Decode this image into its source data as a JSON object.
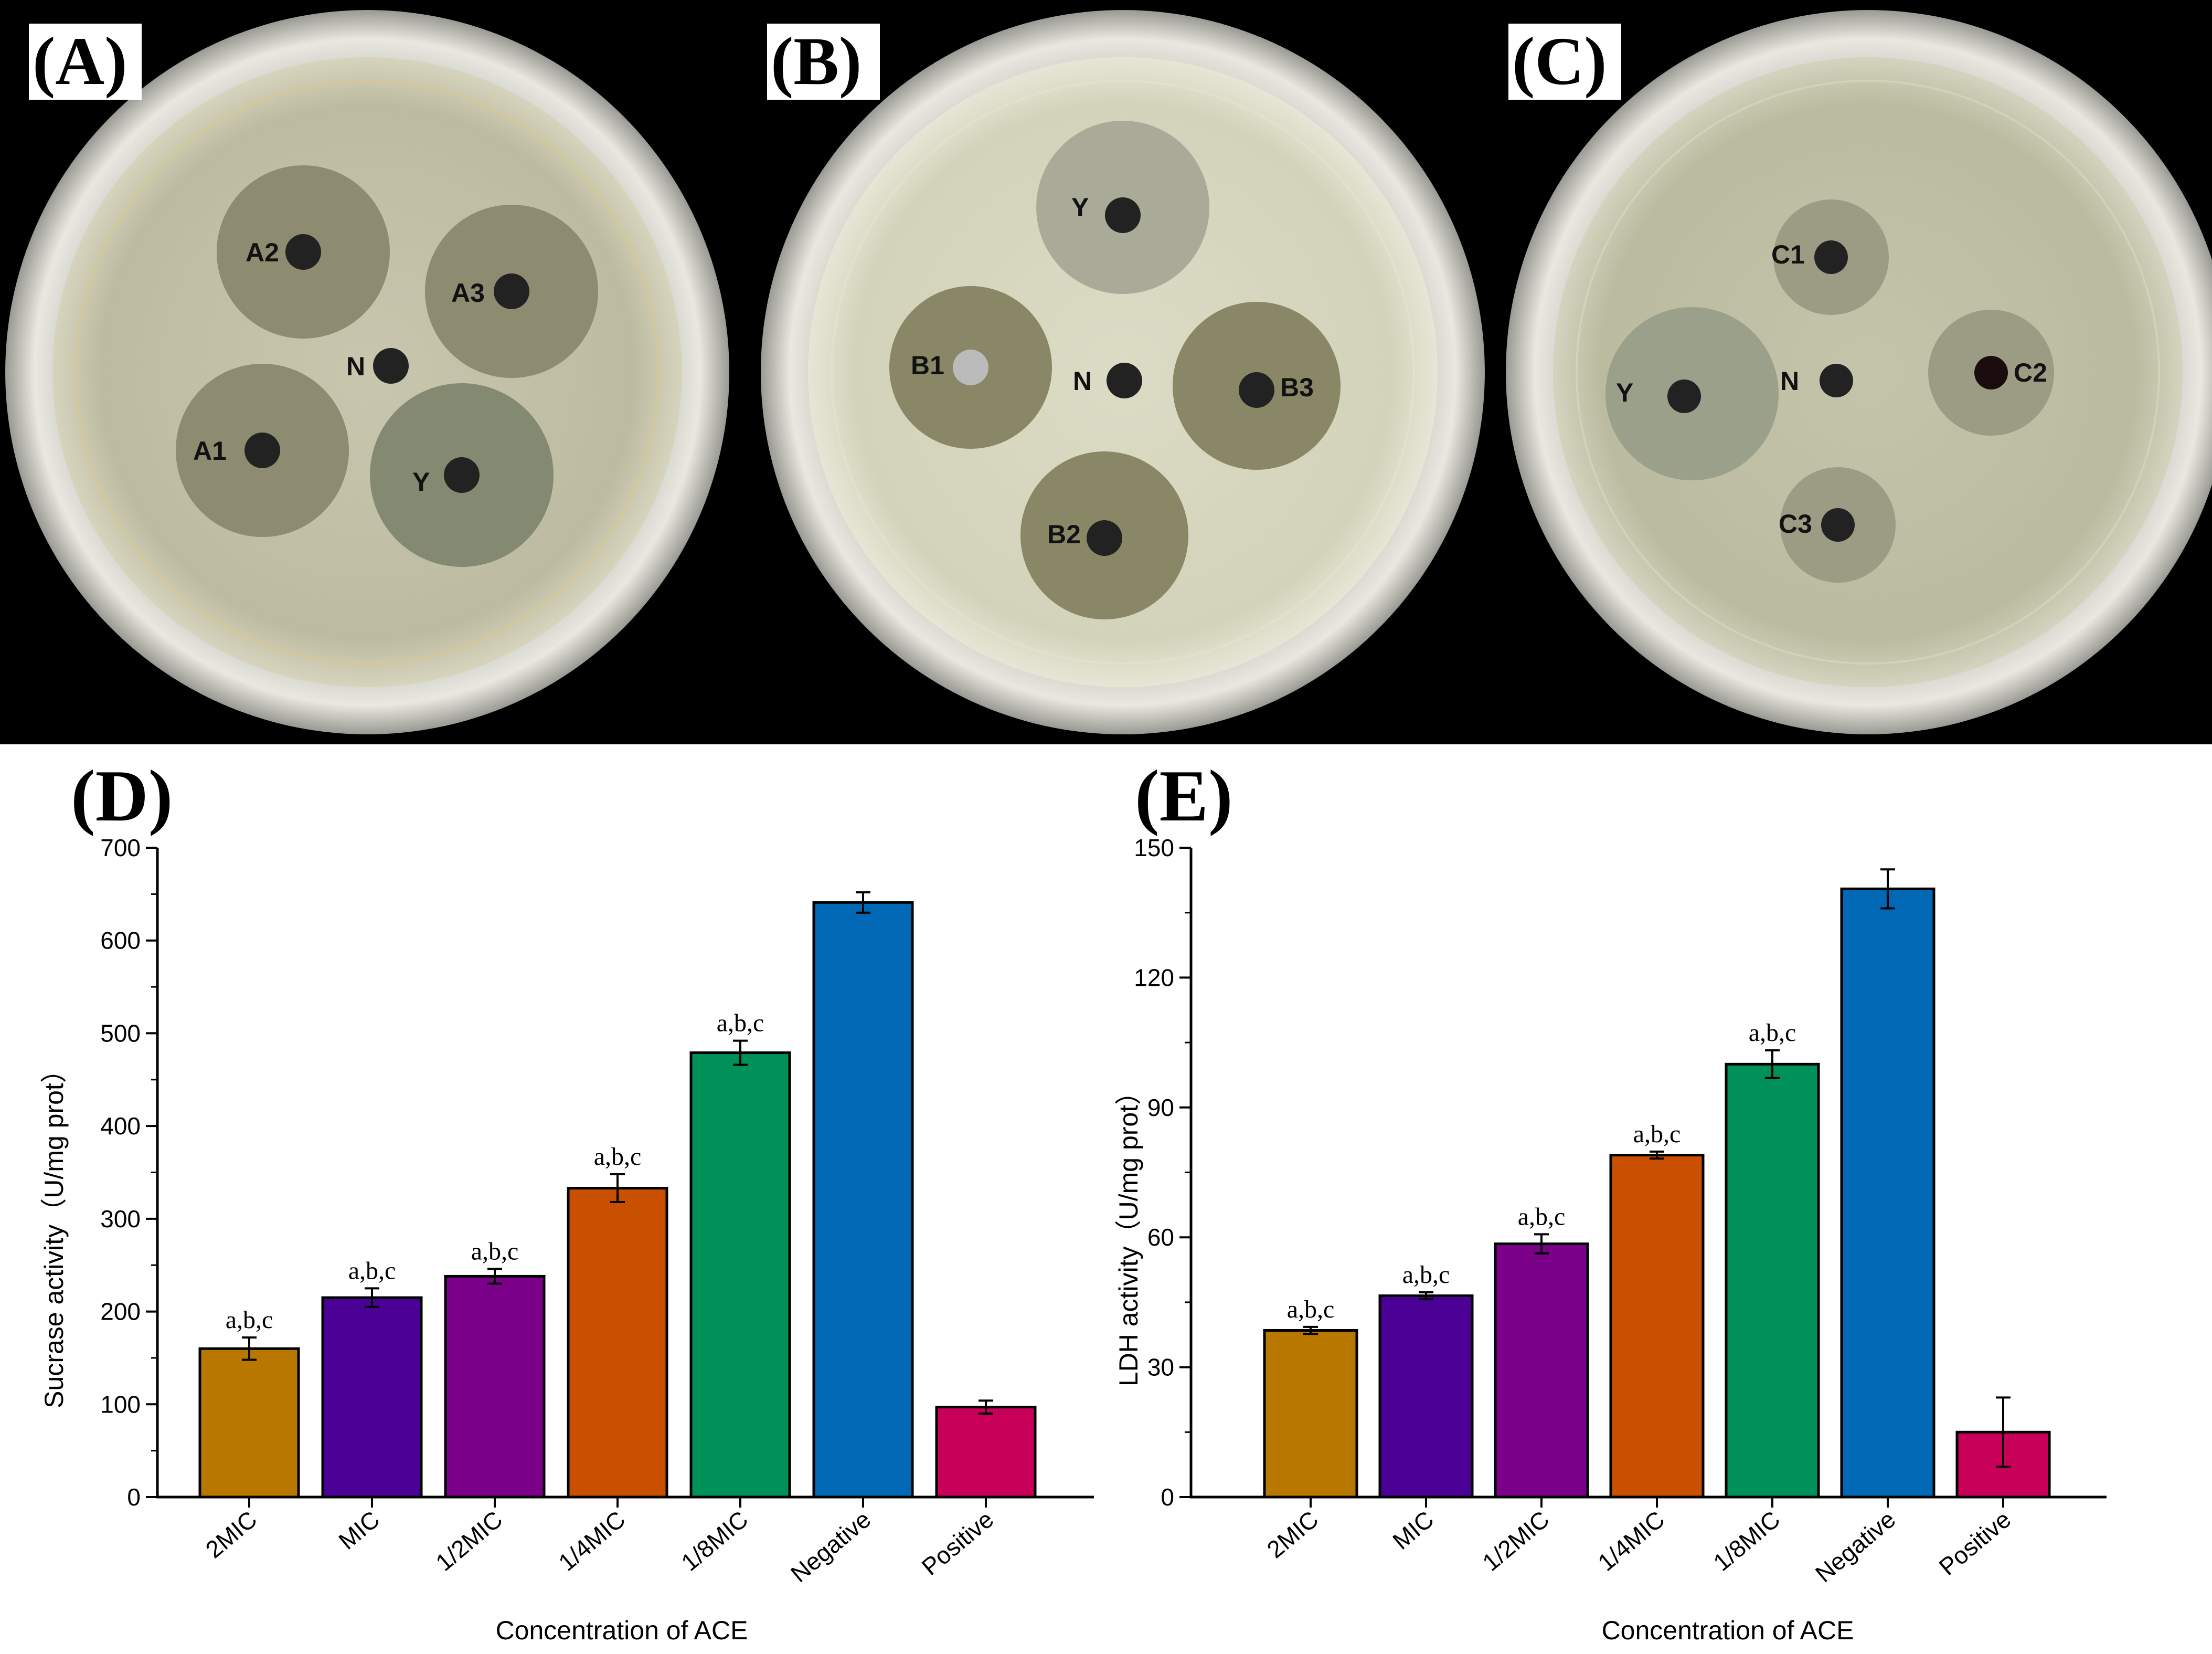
{
  "panels": {
    "a": "(A)",
    "b": "(B)",
    "c": "(C)",
    "d": "(D)",
    "e": "(E)"
  },
  "plates": [
    {
      "wells": [
        {
          "label": "A2"
        },
        {
          "label": "A3"
        },
        {
          "label": "N"
        },
        {
          "label": "A1"
        },
        {
          "label": "Y"
        }
      ]
    },
    {
      "wells": [
        {
          "label": "Y"
        },
        {
          "label": "B1"
        },
        {
          "label": "N"
        },
        {
          "label": "B3"
        },
        {
          "label": "B2"
        }
      ]
    },
    {
      "wells": [
        {
          "label": "C1"
        },
        {
          "label": "Y"
        },
        {
          "label": "N"
        },
        {
          "label": "C2"
        },
        {
          "label": "C3"
        }
      ]
    }
  ],
  "chart_data": [
    {
      "type": "bar",
      "panel": "(D)",
      "categories": [
        "2MIC",
        "MIC",
        "1/2MIC",
        "1/4MIC",
        "1/8MIC",
        "Negative",
        "Positive"
      ],
      "values": [
        160,
        215,
        238,
        333,
        479,
        641,
        97
      ],
      "errors": [
        12,
        10,
        8,
        15,
        13,
        11,
        7
      ],
      "annotations": [
        "a,b,c",
        "a,b,c",
        "a,b,c",
        "a,b,c",
        "a,b,c",
        "",
        ""
      ],
      "colors": [
        "#B87800",
        "#4B0096",
        "#7B008A",
        "#C85000",
        "#00915A",
        "#0068B4",
        "#C8005A"
      ],
      "xlabel": "Concentration of ACE",
      "ylabel": "Sucrase activity（U/mg prot）",
      "ylim": [
        0,
        700
      ],
      "yticks": [
        0,
        100,
        200,
        300,
        400,
        500,
        600,
        700
      ],
      "grid": false
    },
    {
      "type": "bar",
      "panel": "(E)",
      "categories": [
        "2MIC",
        "MIC",
        "1/2MIC",
        "1/4MIC",
        "1/8MIC",
        "Negative",
        "Positive"
      ],
      "values": [
        38.5,
        46.5,
        58.5,
        79,
        100,
        140.5,
        15
      ],
      "errors": [
        0.8,
        0.8,
        2.2,
        0.8,
        3.2,
        4.5,
        8
      ],
      "annotations": [
        "a,b,c",
        "a,b,c",
        "a,b,c",
        "a,b,c",
        "a,b,c",
        "",
        ""
      ],
      "colors": [
        "#B87800",
        "#4B0096",
        "#7B008A",
        "#C85000",
        "#00915A",
        "#0068B4",
        "#C8005A"
      ],
      "xlabel": "Concentration of ACE",
      "ylabel": "LDH activity（U/mg prot）",
      "ylim": [
        0,
        150
      ],
      "yticks": [
        0,
        30,
        60,
        90,
        120,
        150
      ],
      "grid": false
    }
  ]
}
